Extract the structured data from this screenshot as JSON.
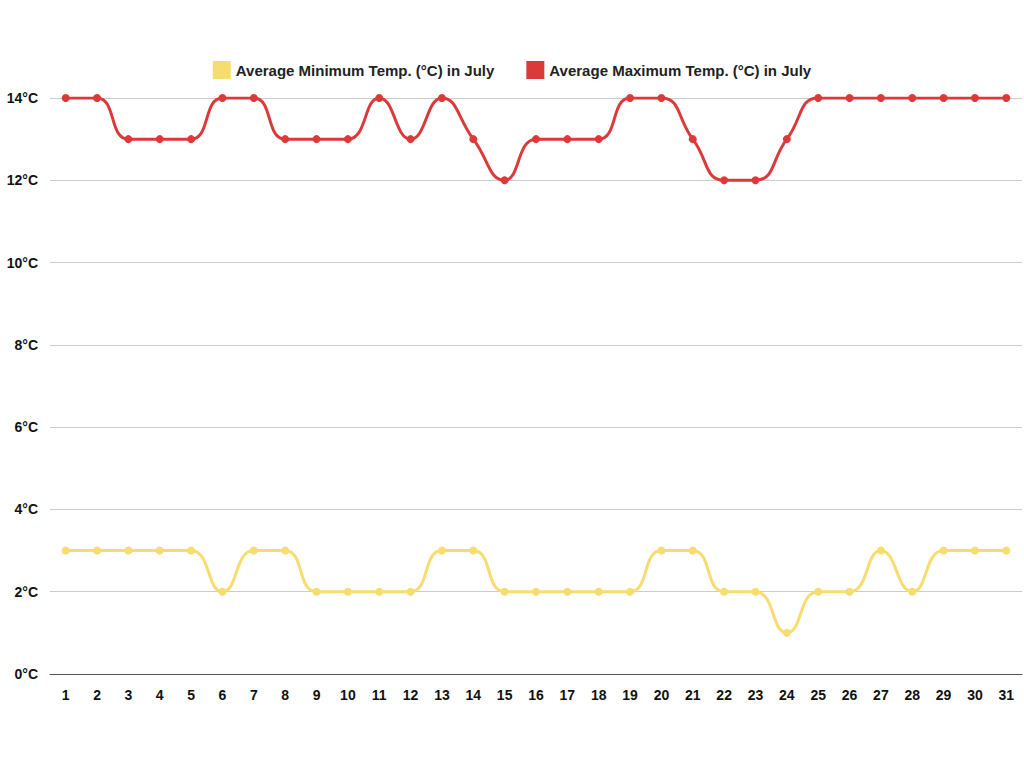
{
  "chart_data": {
    "type": "line",
    "categories": [
      "1",
      "2",
      "3",
      "4",
      "5",
      "6",
      "7",
      "8",
      "9",
      "10",
      "11",
      "12",
      "13",
      "14",
      "15",
      "16",
      "17",
      "18",
      "19",
      "20",
      "21",
      "22",
      "23",
      "24",
      "25",
      "26",
      "27",
      "28",
      "29",
      "30",
      "31"
    ],
    "series": [
      {
        "name": "Average Minimum Temp. (°C) in July",
        "color": "#f7dc6f",
        "values": [
          3,
          3,
          3,
          3,
          3,
          2,
          3,
          3,
          2,
          2,
          2,
          2,
          3,
          3,
          2,
          2,
          2,
          2,
          2,
          3,
          3,
          2,
          2,
          1,
          2,
          2,
          3,
          2,
          3,
          3,
          3
        ]
      },
      {
        "name": "Average Maximum Temp. (°C) in July",
        "color": "#dc3a3a",
        "values": [
          14,
          14,
          13,
          13,
          13,
          14,
          14,
          13,
          13,
          13,
          14,
          13,
          14,
          13,
          12,
          13,
          13,
          13,
          14,
          14,
          13,
          12,
          12,
          13,
          14,
          14,
          14,
          14,
          14,
          14,
          14
        ]
      }
    ],
    "ylim": [
      0,
      14
    ],
    "yticks": [
      {
        "value": 0,
        "label": "0°C"
      },
      {
        "value": 2,
        "label": "2°C"
      },
      {
        "value": 4,
        "label": "4°C"
      },
      {
        "value": 6,
        "label": "6°C"
      },
      {
        "value": 8,
        "label": "8°C"
      },
      {
        "value": 10,
        "label": "10°C"
      },
      {
        "value": 12,
        "label": "12°C"
      },
      {
        "value": 14,
        "label": "14°C"
      }
    ],
    "grid": true,
    "legend": "top",
    "marker": "circle",
    "line_style": "solid"
  }
}
